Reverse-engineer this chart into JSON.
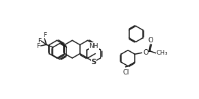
{
  "bg_color": "#ffffff",
  "line_color": "#1a1a1a",
  "line_width": 1.1,
  "fig_width": 2.91,
  "fig_height": 1.45,
  "dpi": 100,
  "xlim": [
    0,
    10
  ],
  "ylim": [
    0,
    5
  ]
}
